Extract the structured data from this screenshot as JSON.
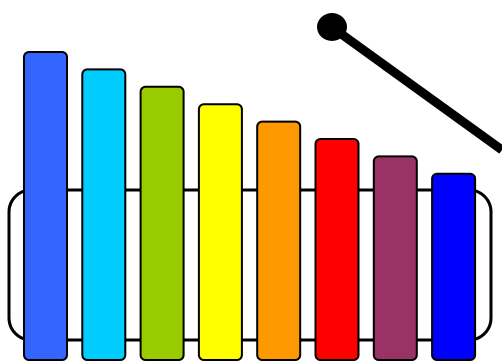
{
  "xylophone": {
    "bars": [
      {
        "color": "#3366FF"
      },
      {
        "color": "#00CCFF"
      },
      {
        "color": "#99CC00"
      },
      {
        "color": "#FFFF00"
      },
      {
        "color": "#FF9900"
      },
      {
        "color": "#FF0000"
      },
      {
        "color": "#993366"
      },
      {
        "color": "#0000FF"
      }
    ],
    "outline_color": "#000000",
    "mallet_color": "#000000"
  }
}
